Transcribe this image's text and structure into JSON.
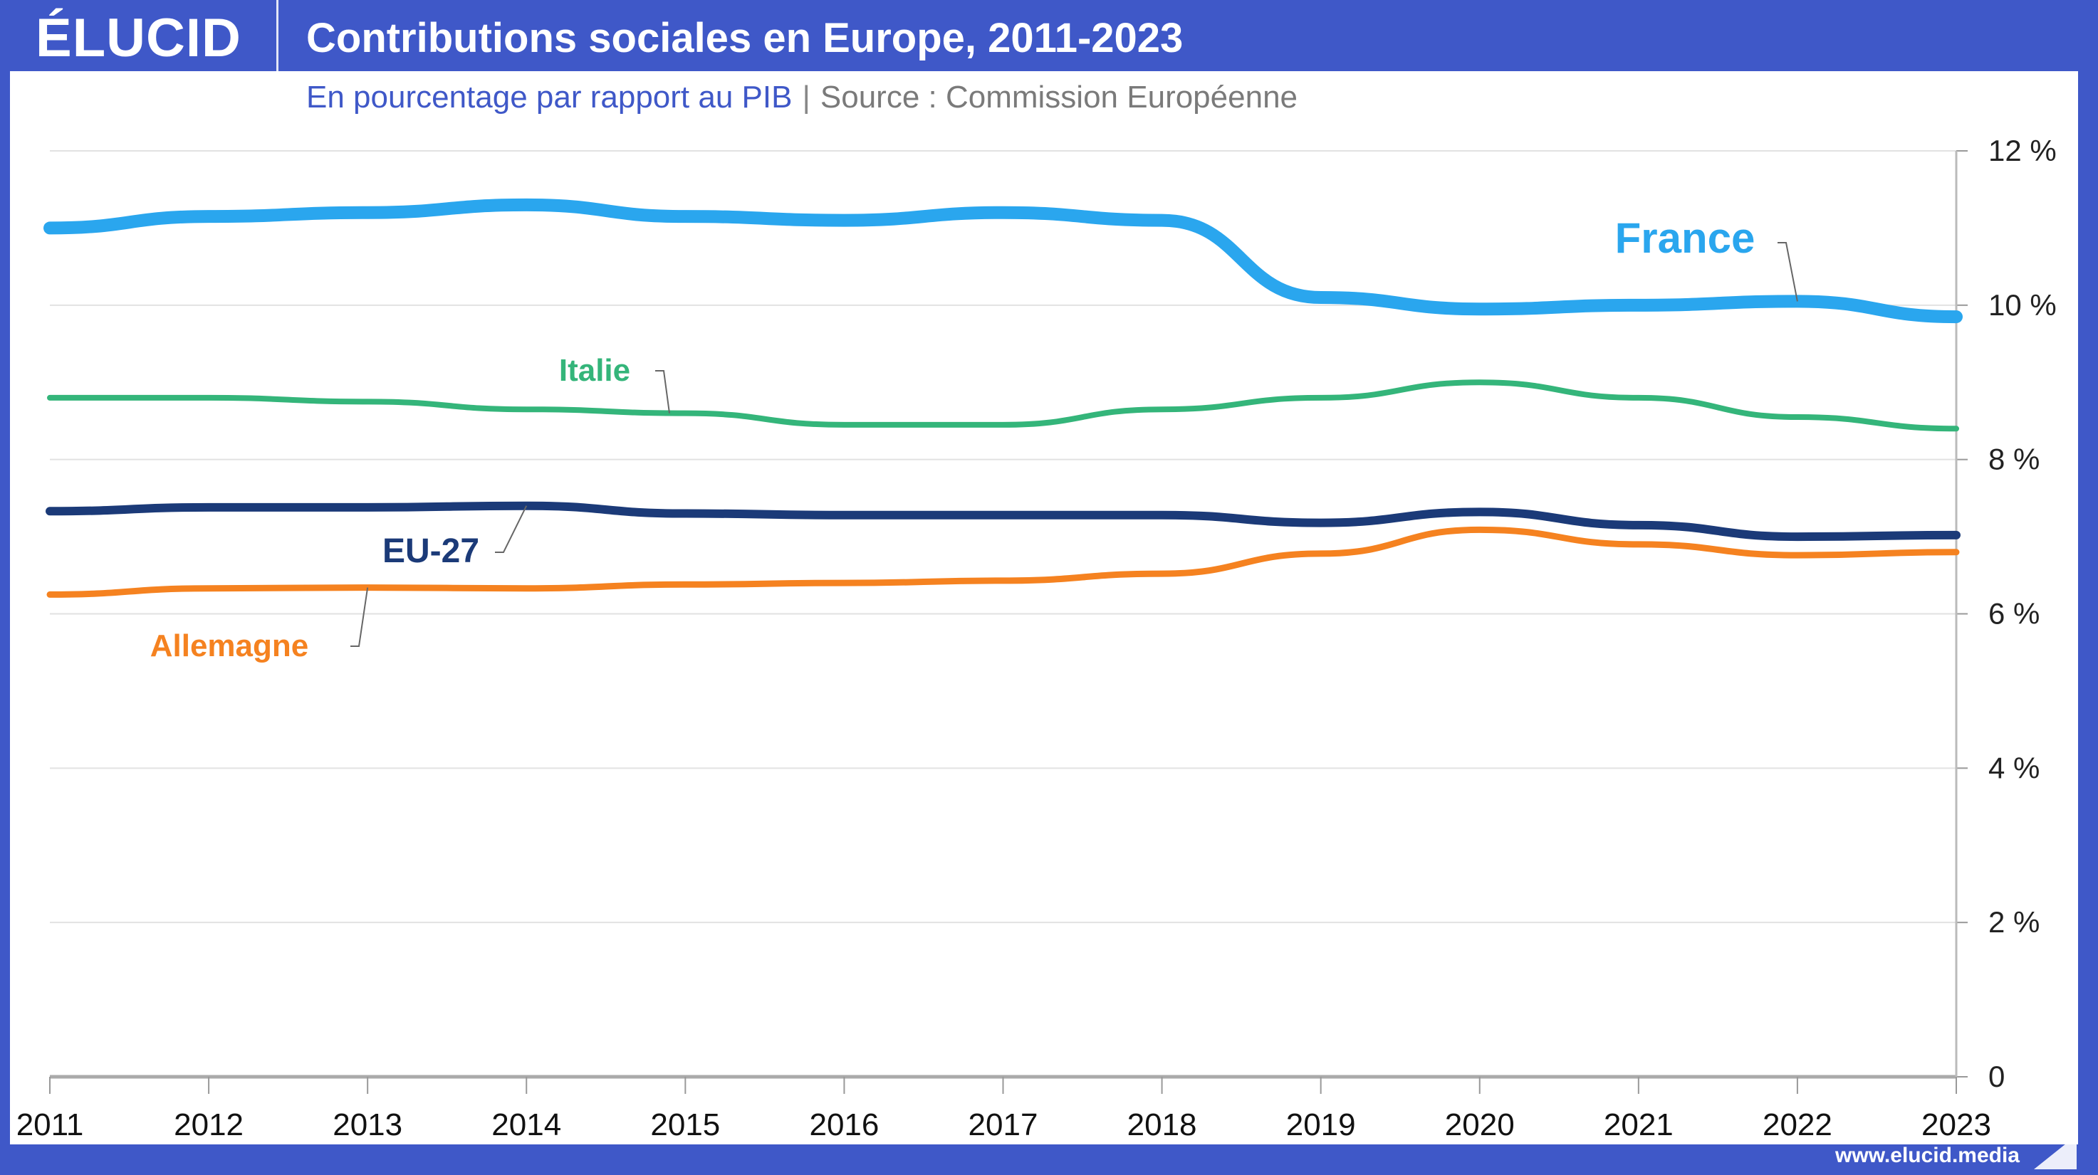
{
  "header": {
    "logo": "ÉLUCID",
    "title": "Contributions sociales en Europe, 2011-2023"
  },
  "subtitle": {
    "unit": "En pourcentage par rapport au PIB",
    "separator": "|",
    "source": "Source : Commission Européenne"
  },
  "footer": {
    "url": "www.elucid.media"
  },
  "chart_data": {
    "type": "line",
    "title": "Contributions sociales en Europe, 2011-2023",
    "subtitle": "En pourcentage par rapport au PIB",
    "source": "Source : Commission Européenne",
    "xlabel": "",
    "ylabel": "",
    "x": [
      2011,
      2012,
      2013,
      2014,
      2015,
      2016,
      2017,
      2018,
      2019,
      2020,
      2021,
      2022,
      2023
    ],
    "x_tick_labels": [
      "2011",
      "2012",
      "2013",
      "2014",
      "2015",
      "2016",
      "2017",
      "2018",
      "2019",
      "2020",
      "2021",
      "2022",
      "2023"
    ],
    "ylim": [
      0,
      12
    ],
    "y_ticks": [
      0,
      2,
      4,
      6,
      8,
      10,
      12
    ],
    "y_tick_labels": [
      "0",
      "2 %",
      "4 %",
      "6 %",
      "8 %",
      "10 %",
      "12 %"
    ],
    "y_axis_side": "right",
    "grid": true,
    "series": [
      {
        "name": "France",
        "color": "#2aa6ee",
        "values": [
          11.0,
          11.15,
          11.2,
          11.3,
          11.15,
          11.1,
          11.2,
          11.1,
          10.1,
          9.95,
          10.0,
          10.05,
          9.85
        ]
      },
      {
        "name": "Italie",
        "color": "#34b57a",
        "values": [
          8.8,
          8.8,
          8.75,
          8.65,
          8.6,
          8.45,
          8.45,
          8.65,
          8.8,
          9.0,
          8.8,
          8.55,
          8.4
        ]
      },
      {
        "name": "EU-27",
        "color": "#1b3a78",
        "values": [
          7.33,
          7.38,
          7.38,
          7.4,
          7.3,
          7.28,
          7.28,
          7.28,
          7.18,
          7.32,
          7.15,
          7.0,
          7.02
        ]
      },
      {
        "name": "Allemagne",
        "color": "#f58220",
        "values": [
          6.25,
          6.33,
          6.34,
          6.33,
          6.38,
          6.4,
          6.43,
          6.52,
          6.78,
          7.09,
          6.9,
          6.76,
          6.8
        ]
      }
    ]
  }
}
